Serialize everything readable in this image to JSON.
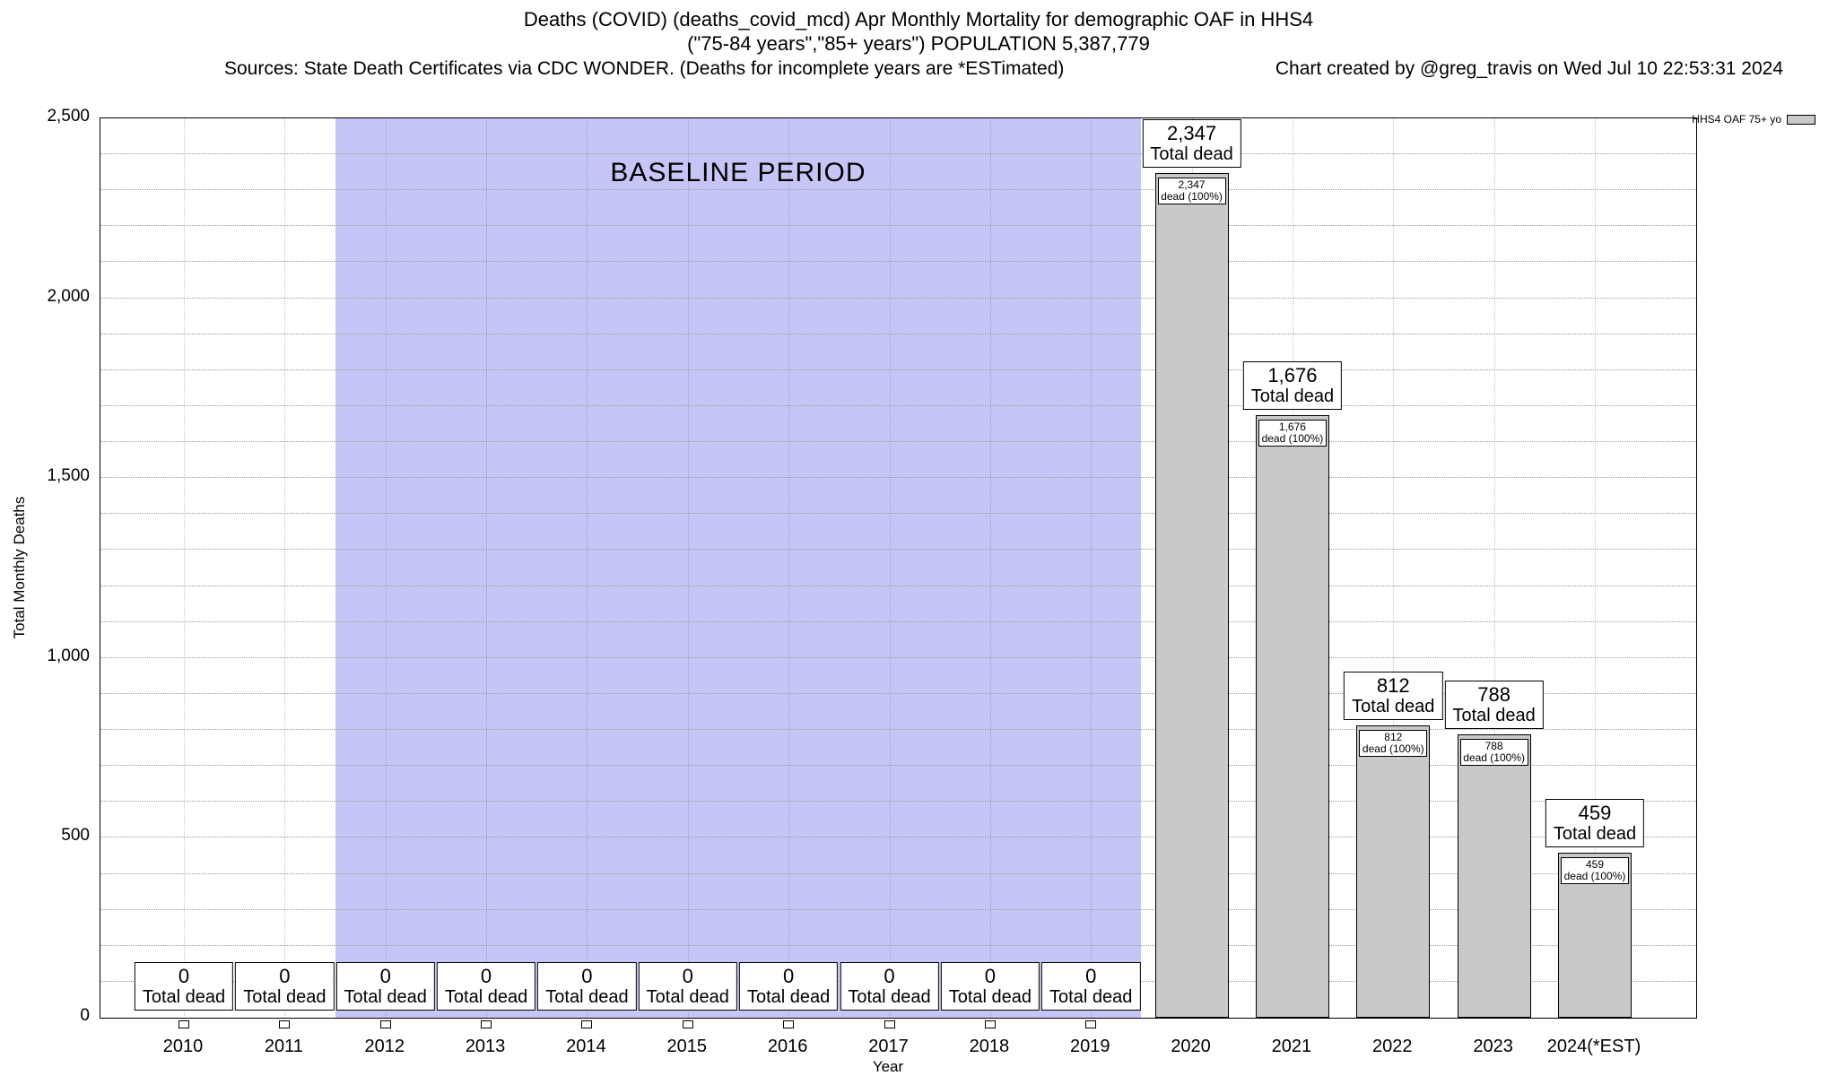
{
  "header": {
    "title_line1": "Deaths (COVID) (deaths_covid_mcd) Apr Monthly Mortality for demographic OAF in HHS4",
    "title_line2": "(\"75-84 years\",\"85+ years\") POPULATION 5,387,779",
    "sources": "Sources: State Death Certificates via CDC WONDER. (Deaths for incomplete years are *ESTimated)",
    "credit": "Chart created by @greg_travis on Wed Jul 10 22:53:31 2024"
  },
  "legend": {
    "label": "HHS4 OAF 75+ yo"
  },
  "chart_data": {
    "type": "bar",
    "title": "Deaths (COVID) (deaths_covid_mcd) Apr Monthly Mortality for demographic OAF in HHS4",
    "xlabel": "Year",
    "ylabel": "Total Monthly Deaths",
    "ylim": [
      0,
      2500
    ],
    "ytick_step": 500,
    "grid_step": 100,
    "grid": true,
    "legend_position": "top-right",
    "series_name": "HHS4 OAF 75+ yo",
    "categories": [
      "2010",
      "2011",
      "2012",
      "2013",
      "2014",
      "2015",
      "2016",
      "2017",
      "2018",
      "2019",
      "2020",
      "2021",
      "2022",
      "2023",
      "2024(*EST)"
    ],
    "values": [
      0,
      0,
      0,
      0,
      0,
      0,
      0,
      0,
      0,
      0,
      2347,
      1676,
      812,
      788,
      459
    ],
    "baseline": {
      "label": "BASELINE PERIOD",
      "start_category": "2012",
      "end_category": "2019"
    },
    "annotations": {
      "outer_suffix": "Total dead",
      "inner_suffix": "dead (100%)"
    },
    "colors": {
      "bar_fill": "#c9c9c9",
      "bar_border": "#000000",
      "baseline_fill": "#c6c6f6",
      "grid": "#9a9a9a"
    }
  }
}
